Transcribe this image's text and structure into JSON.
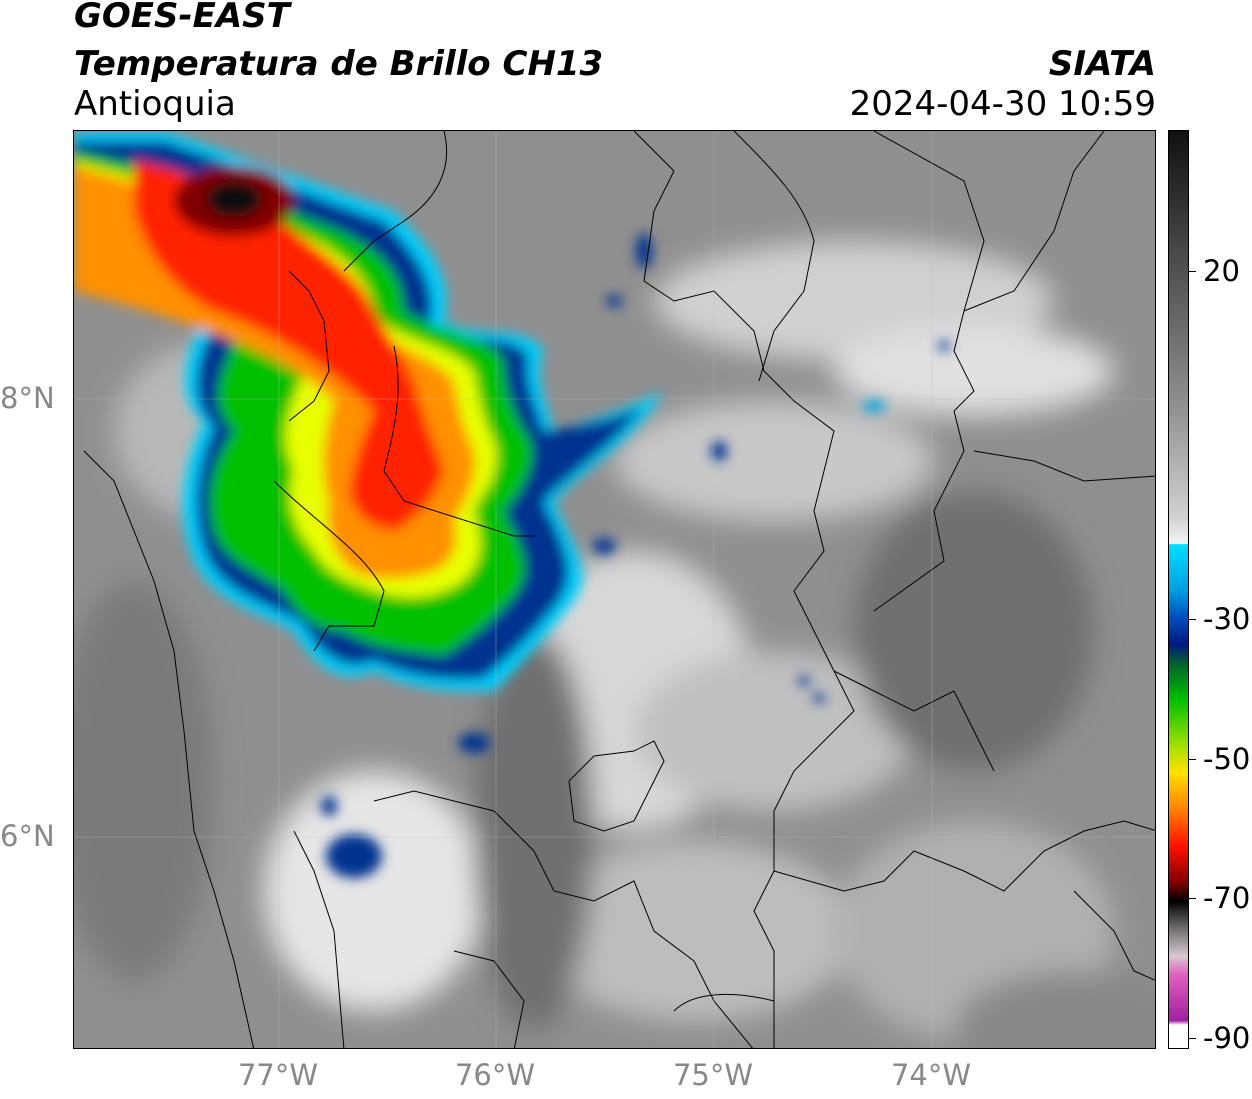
{
  "header": {
    "line1": "GOES-EAST",
    "line2": "Temperatura de Brillo CH13",
    "region": "Antioquia",
    "agency": "SIATA",
    "datetime": "2024-04-30 10:59"
  },
  "map": {
    "x_ticks": [
      "77°W",
      "76°W",
      "75°W",
      "74°W"
    ],
    "y_ticks": [
      "8°N",
      "6°N"
    ]
  },
  "colorbar": {
    "ticks": [
      "20",
      "-30",
      "-50",
      "-70",
      "-90"
    ],
    "palette": {
      "magenta": "#a020a0",
      "pink": "#e060c0",
      "light_gray": "#d8d8d8",
      "black": "#000000",
      "dark_red": "#800000",
      "red": "#ff0000",
      "orange": "#ff8000",
      "yellow": "#ffe000",
      "green": "#00c000",
      "dark_green": "#008030",
      "dark_blue": "#001a80",
      "blue": "#0050d0",
      "cyan": "#00d0ff",
      "white": "#ffffff",
      "gray": "#808080"
    }
  }
}
